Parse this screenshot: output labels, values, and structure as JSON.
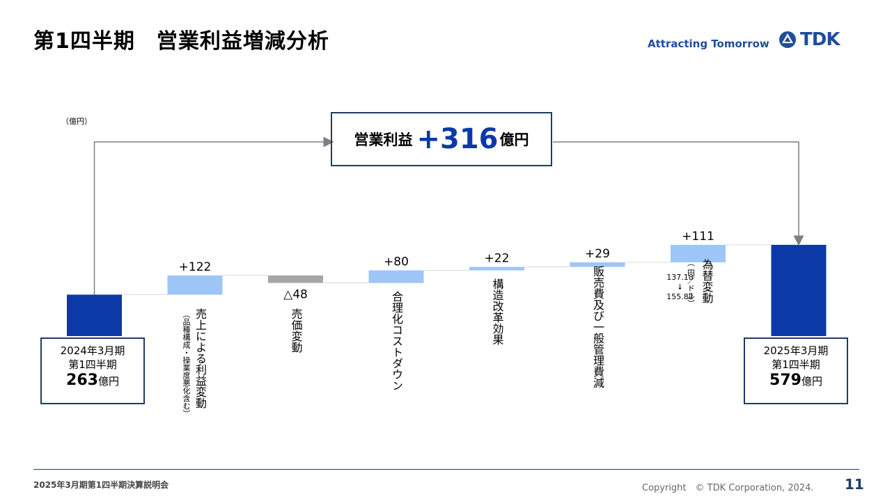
{
  "header": {
    "title": "第1四半期　営業利益増減分析",
    "tagline": "Attracting Tomorrow",
    "logo_text": "TDK"
  },
  "unit_label": "（億円）",
  "total_change": {
    "prefix": "営業利益",
    "value": "+316",
    "suffix": "億円"
  },
  "start_box": {
    "line1": "2024年3月期",
    "line2": "第1四半期",
    "value": "263",
    "unit": "億円"
  },
  "end_box": {
    "line1": "2025年3月期",
    "line2": "第1四半期",
    "value": "579",
    "unit": "億円"
  },
  "chart_data": {
    "type": "bar",
    "subtype": "waterfall",
    "start": {
      "value": 263
    },
    "end": {
      "value": 579
    },
    "steps": [
      {
        "label": "売上による利益変動",
        "note": "（品種構成・操業度悪化含む）",
        "value": 122,
        "display": "+122"
      },
      {
        "label": "売価変動",
        "note": "",
        "value": -48,
        "display": "△48"
      },
      {
        "label": "合理化コストダウン",
        "note": "",
        "value": 80,
        "display": "+80"
      },
      {
        "label": "構造改革効果",
        "note": "",
        "value": 22,
        "display": "+22"
      },
      {
        "label": "販売費及び一般管理費減",
        "note": "",
        "value": 29,
        "display": "+29"
      },
      {
        "label": "為替変動",
        "note": "（ 円／ドル）",
        "note_from": "137.18",
        "note_arrow": "↓",
        "note_to": "155.82",
        "value": 111,
        "display": "+111"
      }
    ],
    "colors": {
      "endpoint": "#0b3aa8",
      "increase": "#9ec5f8",
      "decrease": "#a6a6a6",
      "connector": "#d9d9d9"
    }
  },
  "footer": {
    "left": "2025年3月期第1四半期決算説明会",
    "copyright": "Copyright　© TDK Corporation, 2024.",
    "page": "11"
  }
}
